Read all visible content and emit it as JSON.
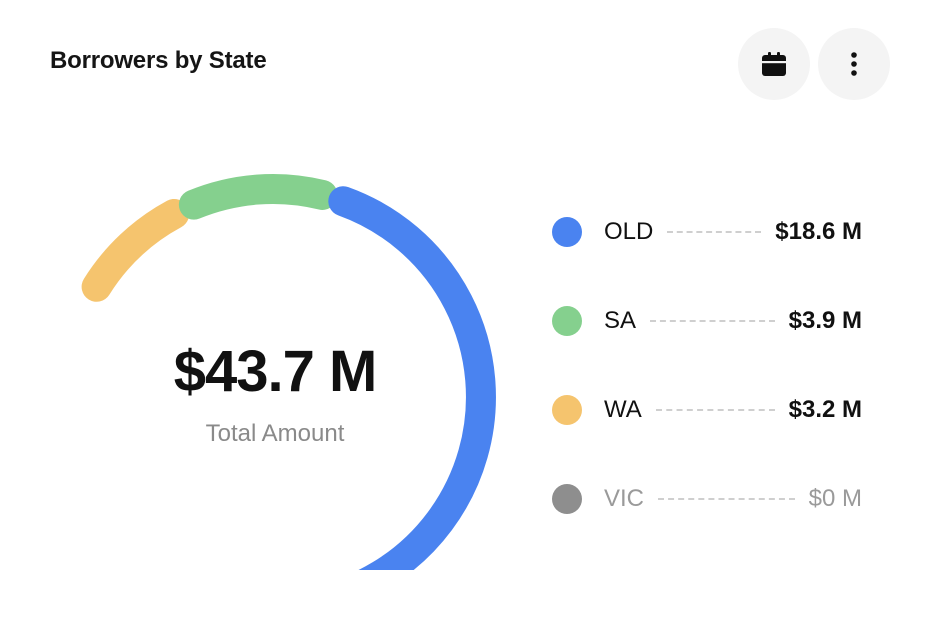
{
  "card": {
    "title": "Borrowers by State",
    "calendar_icon": "calendar-icon",
    "more_icon": "more-vertical-icon"
  },
  "chart_data": {
    "type": "donut-gauge",
    "total_value": "$43.7 M",
    "total_label": "Total Amount",
    "series": [
      {
        "name": "OLD",
        "value": 18.6,
        "display": "$18.6 M",
        "color": "#4a83f0",
        "muted": false
      },
      {
        "name": "SA",
        "value": 3.9,
        "display": "$3.9 M",
        "color": "#85d08e",
        "muted": false
      },
      {
        "name": "WA",
        "value": 3.2,
        "display": "$3.2 M",
        "color": "#f5c46e",
        "muted": false
      },
      {
        "name": "VIC",
        "value": 0,
        "display": "$0 M",
        "color": "#8e8e8e",
        "muted": true
      }
    ]
  }
}
